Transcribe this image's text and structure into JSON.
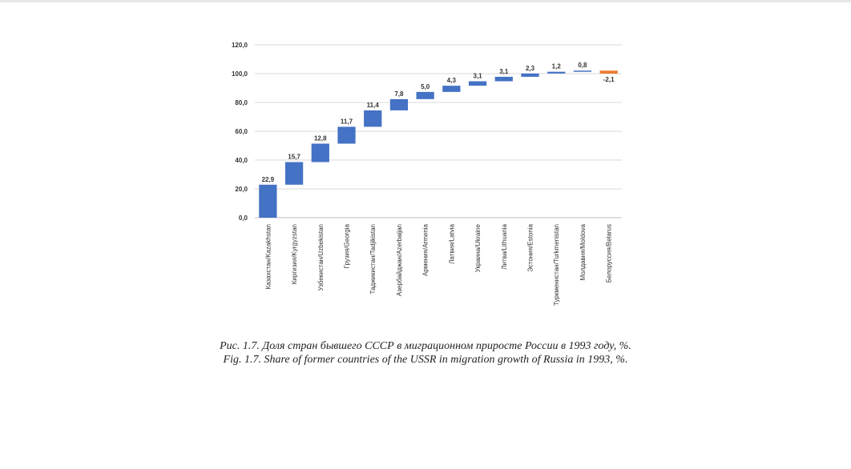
{
  "chart_data": {
    "type": "bar",
    "subtype": "waterfall",
    "categories": [
      "Казахстан/Kazakhstan",
      "Киргизия/Kyrgyzstan",
      "Узбекистан/Uzbekistan",
      "Грузия/Georgia",
      "Таджикистан/Tadjikistan",
      "Азербайджан/Azerbaijan",
      "Армения/Armenia",
      "Латвия/Latvia",
      "Украина/Ukraine",
      "Литва/Lithuania",
      "Эстония/Estonia",
      "Туркменистан/Turkmenistan",
      "Молдавия/Moldova",
      "Белоруссия/Belarus"
    ],
    "values": [
      22.9,
      15.7,
      12.8,
      11.7,
      11.4,
      7.8,
      5.0,
      4.3,
      3.1,
      3.1,
      2.3,
      1.2,
      0.8,
      -2.1
    ],
    "data_labels": [
      "22,9",
      "15,7",
      "12,8",
      "11,7",
      "11,4",
      "7,8",
      "5,0",
      "4,3",
      "3,1",
      "3,1",
      "2,3",
      "1,2",
      "0,8",
      "-2,1"
    ],
    "yticks": [
      0,
      20,
      40,
      60,
      80,
      100,
      120
    ],
    "ytick_labels": [
      "0,0",
      "20,0",
      "40,0",
      "60,0",
      "80,0",
      "100,0",
      "120,0"
    ],
    "ylim": [
      0,
      120
    ],
    "grid": true,
    "colors": {
      "increase": "#4472c4",
      "decrease": "#ed7d31",
      "grid": "#d9d9d9",
      "axis": "#bfbfbf"
    }
  },
  "caption": {
    "ru": "Рис. 1.7. Доля стран бывшего СССР в миграционном приросте России в 1993 году, %.",
    "en": "Fig. 1.7. Share of former countries of the USSR in migration growth of Russia in 1993, %."
  }
}
